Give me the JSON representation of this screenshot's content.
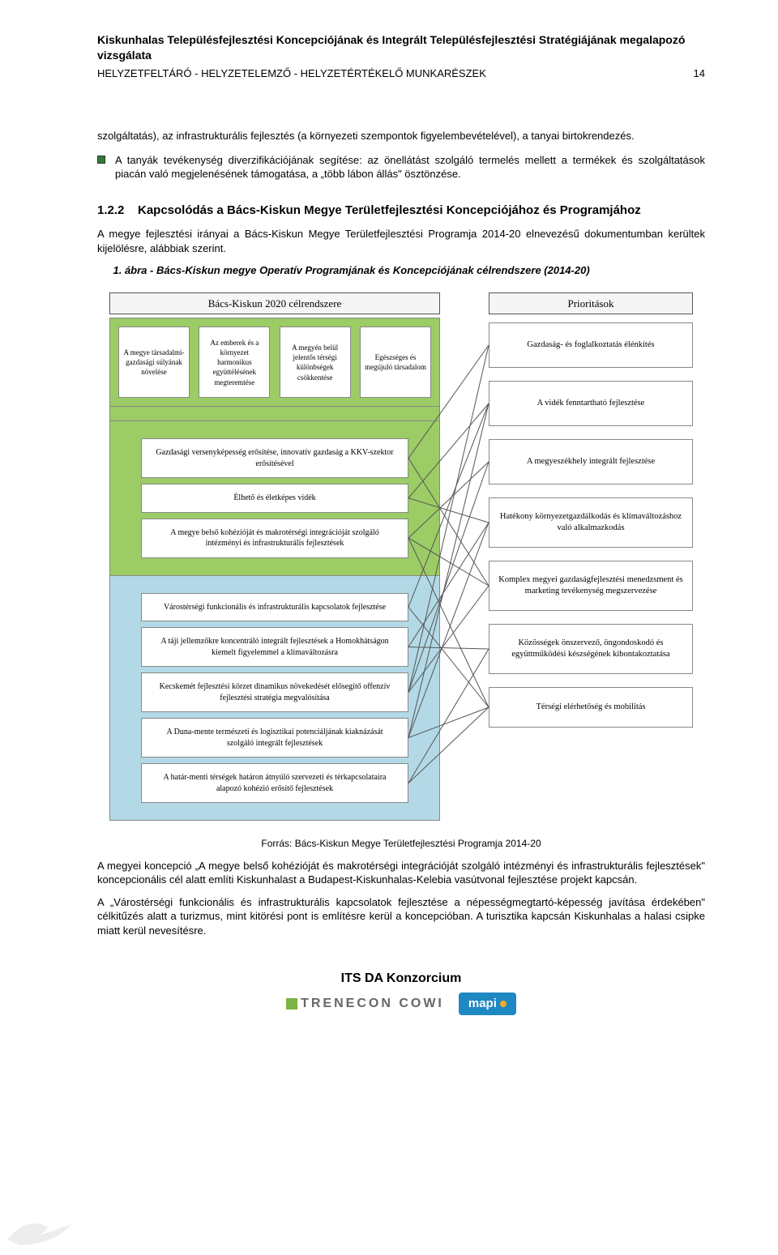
{
  "header": {
    "title": "Kiskunhalas Településfejlesztési Koncepciójának és Integrált Településfejlesztési Stratégiájának megalapozó vizsgálata",
    "subtitle": "HELYZETFELTÁRÓ - HELYZETELEMZŐ - HELYZETÉRTÉKELŐ MUNKARÉSZEK",
    "page_number": "14"
  },
  "intro_para": "szolgáltatás), az infrastrukturális fejlesztés (a környezeti szempontok figyelembevételével), a tanyai birtokrendezés.",
  "bullet": "A tanyák tevékenység diverzifikációjának segítése: az önellátást szolgáló termelés mellett a termékek és szolgáltatások piacán való megjelenésének támogatása, a „több lábon állás\" ösztönzése.",
  "section": {
    "number": "1.2.2",
    "title": "Kapcsolódás a Bács-Kiskun Megye Területfejlesztési Koncepciójához és Programjához"
  },
  "section_para": "A megye fejlesztési irányai a Bács-Kiskun Megye Területfejlesztési Programja 2014-20 elnevezésű dokumentumban kerültek kijelölésre, alábbiak szerint.",
  "figure_caption": "1. ábra - Bács-Kiskun megye Operatív Programjának és Koncepciójának célrendszere (2014-20)",
  "diagram": {
    "colors": {
      "green": "#9ccc65",
      "blue": "#b3d9e6",
      "border": "#888888",
      "header_bg": "#f5f5f5"
    },
    "left_header": "Bács-Kiskun 2020 célrendszere",
    "right_header": "Prioritások",
    "top_tiles": [
      "A megye társadalmi-gazdasági súlyának növelése",
      "Az emberek és a környezet harmonikus együttélésének megteremtése",
      "A megyén belül jelentős térségi különbségek csökkentése",
      "Egészséges és megújuló társadalom"
    ],
    "green_rows": [
      "Gazdasági versenyképesség erősítése, innovatív gazdaság a KKV-szektor erősítésével",
      "Élhető és életképes vidék",
      "A megye belső kohézióját és makrotérségi integrációját szolgáló intézményi és infrastrukturális fejlesztések"
    ],
    "blue_rows": [
      "Várostérségi funkcionális és infrastrukturális kapcsolatok fejlesztése",
      "A táji jellemzőkre koncentráló integrált fejlesztések a Homokhátságon kiemelt figyelemmel a klímaváltozásra",
      "Kecskemét fejlesztési körzet dinamikus növekedését elősegítő offenzív fejlesztési stratégia megvalósítása",
      "A Duna-mente természeti és logisztikai potenciáljának kiaknázását szolgáló integrált fejlesztések",
      "A határ-menti térségek határon átnyúló szervezeti és térkapcsolataira alapozó kohézió erősítő fejlesztések"
    ],
    "right_cells": [
      "Gazdaság- és foglalkoztatás élénkítés",
      "A vidék fenntartható fejlesztése",
      "A megyeszékhely integrált fejlesztése",
      "Hatékony környezetgazdálkodás és klímaváltozáshoz való alkalmazkodás",
      "Komplex megyei gazdaságfejlesztési menedzsment és marketing tevékenység megszervezése",
      "Közösségek önszervező, öngondoskodó és együttműködési készségének kibontakoztatása",
      "Térségi elérhetőség és mobilitás"
    ],
    "right_cell_heights": [
      56,
      56,
      56,
      62,
      62,
      62,
      50
    ],
    "edges": [
      {
        "from": 0,
        "to": 0
      },
      {
        "from": 0,
        "to": 4
      },
      {
        "from": 1,
        "to": 1
      },
      {
        "from": 1,
        "to": 3
      },
      {
        "from": 2,
        "to": 2
      },
      {
        "from": 2,
        "to": 4
      },
      {
        "from": 2,
        "to": 6
      },
      {
        "from": 3,
        "to": 1
      },
      {
        "from": 3,
        "to": 6
      },
      {
        "from": 4,
        "to": 3
      },
      {
        "from": 4,
        "to": 5
      },
      {
        "from": 5,
        "to": 0
      },
      {
        "from": 5,
        "to": 2
      },
      {
        "from": 5,
        "to": 4
      },
      {
        "from": 6,
        "to": 1
      },
      {
        "from": 6,
        "to": 3
      },
      {
        "from": 6,
        "to": 6
      },
      {
        "from": 7,
        "to": 5
      },
      {
        "from": 7,
        "to": 6
      }
    ]
  },
  "source": "Forrás: Bács-Kiskun Megye Területfejlesztési Programja 2014-20",
  "after_para_1": "A megyei koncepció „A megye belső kohézióját és makrotérségi integrációját szolgáló intézményi és infrastrukturális fejlesztések\" koncepcionális cél alatt említi Kiskunhalast a Budapest-Kiskunhalas-Kelebia vasútvonal fejlesztése projekt kapcsán.",
  "after_para_2": "A „Várostérségi funkcionális és infrastrukturális kapcsolatok fejlesztése a népességmegtartó-képesség javítása érdekében\" célkitűzés alatt a turizmus, mint kitörési pont is említésre kerül a koncepcióban. A turisztika kapcsán Kiskunhalas a halasi csipke miatt kerül nevesítésre.",
  "footer": {
    "consortium": "ITS DA Konzorcium",
    "logo1": "TRENECON COWI",
    "logo2": "mapi"
  }
}
